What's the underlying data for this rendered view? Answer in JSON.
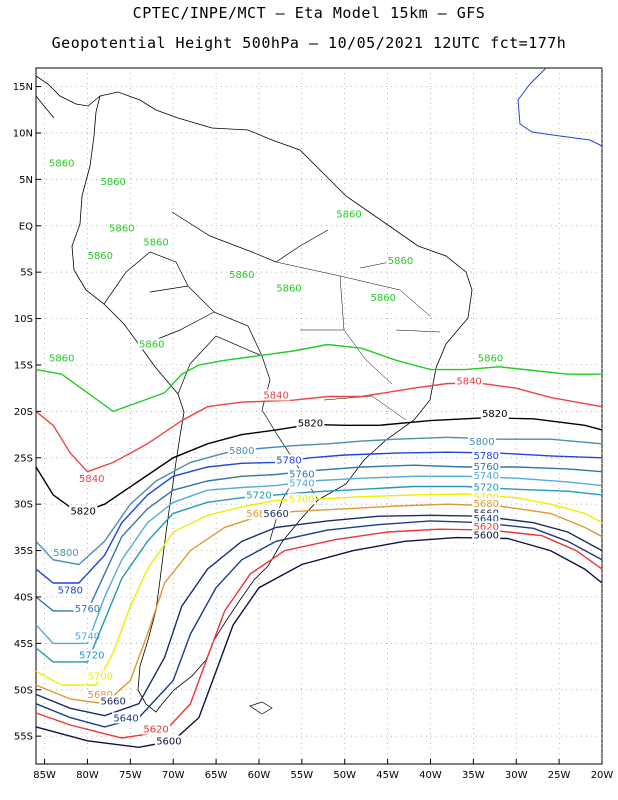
{
  "header": {
    "line1": "CPTEC/INPE/MCT –  Eta Model 15km – GFS",
    "line2": "Geopotential Height 500hPa – 10/05/2021 12UTC fct=177h"
  },
  "axes": {
    "lat_ticks": [
      "15N",
      "10N",
      "5N",
      "EQ",
      "5S",
      "10S",
      "15S",
      "20S",
      "25S",
      "30S",
      "35S",
      "40S",
      "45S",
      "50S",
      "55S"
    ],
    "lon_ticks": [
      "85W",
      "80W",
      "75W",
      "70W",
      "65W",
      "60W",
      "55W",
      "50W",
      "45W",
      "40W",
      "35W",
      "30W",
      "25W",
      "20W"
    ],
    "lat_values": [
      15,
      10,
      5,
      0,
      -5,
      -10,
      -15,
      -20,
      -25,
      -30,
      -35,
      -40,
      -45,
      -50,
      -55
    ],
    "lon_values": [
      -85,
      -80,
      -75,
      -70,
      -65,
      -60,
      -55,
      -50,
      -45,
      -40,
      -35,
      -30,
      -25,
      -20
    ],
    "lon_range": [
      -86,
      -20
    ],
    "lat_range": [
      -58,
      17
    ]
  },
  "contours": [
    {
      "level": 5860,
      "label": "5860",
      "color": "#22cc22",
      "path": [
        [
          -86,
          -15.5
        ],
        [
          -83,
          -16
        ],
        [
          -80,
          -18
        ],
        [
          -77,
          -20
        ],
        [
          -74,
          -19
        ],
        [
          -71,
          -18
        ],
        [
          -69,
          -16
        ],
        [
          -67,
          -15
        ],
        [
          -64,
          -14.5
        ],
        [
          -60,
          -14
        ],
        [
          -56,
          -13.5
        ],
        [
          -52,
          -12.8
        ],
        [
          -48,
          -13.2
        ],
        [
          -44,
          -14.5
        ],
        [
          -40,
          -15.5
        ],
        [
          -36,
          -15.5
        ],
        [
          -32,
          -15.2
        ],
        [
          -28,
          -15.6
        ],
        [
          -24,
          -16
        ],
        [
          -20,
          -16
        ]
      ],
      "labels": [
        {
          "lon": -83,
          "lat": -14.5
        },
        {
          "lon": -33,
          "lat": -14.5
        },
        {
          "lon": -83,
          "lat": 6.5
        },
        {
          "lon": -77,
          "lat": 4.5
        },
        {
          "lon": -76,
          "lat": -0.5
        },
        {
          "lon": -72,
          "lat": -2
        },
        {
          "lon": -78.5,
          "lat": -3.5
        },
        {
          "lon": -62,
          "lat": -5.5
        },
        {
          "lon": -56.5,
          "lat": -7
        },
        {
          "lon": -49.5,
          "lat": 1
        },
        {
          "lon": -43.5,
          "lat": -4
        },
        {
          "lon": -45.5,
          "lat": -8
        },
        {
          "lon": -72.5,
          "lat": -13
        }
      ]
    },
    {
      "level": 5840,
      "label": "5840",
      "color": "#ee4444",
      "path": [
        [
          -86,
          -20
        ],
        [
          -84,
          -21.5
        ],
        [
          -82,
          -24.5
        ],
        [
          -80,
          -26.5
        ],
        [
          -77,
          -25.5
        ],
        [
          -73,
          -23.5
        ],
        [
          -69,
          -21
        ],
        [
          -66,
          -19.5
        ],
        [
          -62,
          -19
        ],
        [
          -56,
          -18.8
        ],
        [
          -52,
          -18.4
        ],
        [
          -48,
          -18.4
        ],
        [
          -42,
          -17.5
        ],
        [
          -38,
          -17
        ],
        [
          -34,
          -17
        ],
        [
          -30,
          -17.5
        ],
        [
          -26,
          -18.5
        ],
        [
          -20,
          -19.5
        ]
      ],
      "labels": [
        {
          "lon": -79.5,
          "lat": -27.5
        },
        {
          "lon": -58,
          "lat": -18.5
        },
        {
          "lon": -35.5,
          "lat": -17
        }
      ]
    },
    {
      "level": 5820,
      "label": "5820",
      "color": "#000000",
      "path": [
        [
          -86,
          -26
        ],
        [
          -84,
          -29
        ],
        [
          -81,
          -31
        ],
        [
          -78,
          -30
        ],
        [
          -74,
          -27.5
        ],
        [
          -70,
          -25
        ],
        [
          -66,
          -23.5
        ],
        [
          -62,
          -22.5
        ],
        [
          -58,
          -22
        ],
        [
          -54,
          -21.4
        ],
        [
          -50,
          -21.5
        ],
        [
          -46,
          -21.5
        ],
        [
          -40,
          -21
        ],
        [
          -34,
          -20.7
        ],
        [
          -28,
          -20.8
        ],
        [
          -22,
          -21.5
        ],
        [
          -20,
          -22
        ]
      ],
      "labels": [
        {
          "lon": -80.5,
          "lat": -31
        },
        {
          "lon": -54,
          "lat": -21.5
        },
        {
          "lon": -32.5,
          "lat": -20.5
        }
      ]
    },
    {
      "level": 5800,
      "label": "5800",
      "color": "#4a8fb0",
      "path": [
        [
          -86,
          -34
        ],
        [
          -84,
          -36
        ],
        [
          -81,
          -36.5
        ],
        [
          -78,
          -34
        ],
        [
          -75,
          -30
        ],
        [
          -72,
          -27.5
        ],
        [
          -68,
          -25.5
        ],
        [
          -64,
          -24.5
        ],
        [
          -60,
          -24
        ],
        [
          -56,
          -23.7
        ],
        [
          -52,
          -23.5
        ],
        [
          -48,
          -23.2
        ],
        [
          -44,
          -23
        ],
        [
          -38,
          -22.8
        ],
        [
          -32,
          -23
        ],
        [
          -26,
          -23
        ],
        [
          -20,
          -23.5
        ]
      ],
      "labels": [
        {
          "lon": -82.5,
          "lat": -35.5
        },
        {
          "lon": -62,
          "lat": -24.5
        },
        {
          "lon": -34,
          "lat": -23.5
        }
      ]
    },
    {
      "level": 5780,
      "label": "5780",
      "color": "#2244dd",
      "path": [
        [
          -86,
          -37
        ],
        [
          -84,
          -38.5
        ],
        [
          -81,
          -38.5
        ],
        [
          -78,
          -35.5
        ],
        [
          -76,
          -32
        ],
        [
          -73,
          -29
        ],
        [
          -70,
          -27
        ],
        [
          -66,
          -26
        ],
        [
          -62,
          -25.6
        ],
        [
          -58,
          -25.5
        ],
        [
          -54,
          -25
        ],
        [
          -50,
          -24.7
        ],
        [
          -44,
          -24.5
        ],
        [
          -38,
          -24.4
        ],
        [
          -32,
          -24.5
        ],
        [
          -26,
          -24.8
        ],
        [
          -20,
          -25
        ]
      ],
      "labels": [
        {
          "lon": -82,
          "lat": -39.5
        },
        {
          "lon": -56.5,
          "lat": -25.5
        },
        {
          "lon": -33.5,
          "lat": -25
        }
      ]
    },
    {
      "level": 5760,
      "label": "5760",
      "color": "#3377aa",
      "path": [
        [
          -86,
          -40
        ],
        [
          -84,
          -41.5
        ],
        [
          -80,
          -41.5
        ],
        [
          -78,
          -37.5
        ],
        [
          -76,
          -33.5
        ],
        [
          -73,
          -30.5
        ],
        [
          -70,
          -28.5
        ],
        [
          -66,
          -27.5
        ],
        [
          -62,
          -27
        ],
        [
          -58,
          -26.8
        ],
        [
          -54,
          -26.4
        ],
        [
          -48,
          -26
        ],
        [
          -42,
          -25.8
        ],
        [
          -36,
          -26
        ],
        [
          -30,
          -26
        ],
        [
          -24,
          -26.2
        ],
        [
          -20,
          -26.5
        ]
      ],
      "labels": [
        {
          "lon": -80,
          "lat": -41.5
        },
        {
          "lon": -55,
          "lat": -27
        },
        {
          "lon": -33.5,
          "lat": -26.2
        }
      ]
    },
    {
      "level": 5740,
      "label": "5740",
      "color": "#55aadd",
      "path": [
        [
          -86,
          -43
        ],
        [
          -84,
          -45
        ],
        [
          -80,
          -45
        ],
        [
          -78,
          -40
        ],
        [
          -76,
          -36
        ],
        [
          -73,
          -32
        ],
        [
          -70,
          -29.8
        ],
        [
          -66,
          -28.5
        ],
        [
          -62,
          -28.2
        ],
        [
          -58,
          -28
        ],
        [
          -54,
          -27.5
        ],
        [
          -48,
          -27.2
        ],
        [
          -42,
          -27
        ],
        [
          -36,
          -27
        ],
        [
          -30,
          -27.2
        ],
        [
          -24,
          -27.6
        ],
        [
          -20,
          -28
        ]
      ],
      "labels": [
        {
          "lon": -80,
          "lat": -44.5
        },
        {
          "lon": -55,
          "lat": -28
        },
        {
          "lon": -33.5,
          "lat": -27.2
        }
      ]
    },
    {
      "level": 5720,
      "label": "5720",
      "color": "#2299bb",
      "path": [
        [
          -86,
          -45.5
        ],
        [
          -84,
          -47
        ],
        [
          -80,
          -47
        ],
        [
          -78,
          -42.5
        ],
        [
          -76,
          -38
        ],
        [
          -73,
          -34
        ],
        [
          -70,
          -31
        ],
        [
          -66,
          -29.8
        ],
        [
          -62,
          -29.3
        ],
        [
          -58,
          -29
        ],
        [
          -54,
          -28.7
        ],
        [
          -48,
          -28.4
        ],
        [
          -42,
          -28.1
        ],
        [
          -36,
          -28.1
        ],
        [
          -30,
          -28.4
        ],
        [
          -24,
          -28.6
        ],
        [
          -20,
          -29
        ]
      ],
      "labels": [
        {
          "lon": -79.5,
          "lat": -46.5
        },
        {
          "lon": -60,
          "lat": -29.3
        },
        {
          "lon": -33.5,
          "lat": -28.4
        }
      ]
    },
    {
      "level": 5700,
      "label": "5700",
      "color": "#eeee00",
      "path": [
        [
          -86,
          -48
        ],
        [
          -83,
          -49.5
        ],
        [
          -79,
          -49.5
        ],
        [
          -77,
          -46
        ],
        [
          -75,
          -41
        ],
        [
          -73,
          -37
        ],
        [
          -70,
          -33
        ],
        [
          -66,
          -31.2
        ],
        [
          -62,
          -30.3
        ],
        [
          -58,
          -29.6
        ],
        [
          -54,
          -29.5
        ],
        [
          -48,
          -29.2
        ],
        [
          -42,
          -29
        ],
        [
          -36,
          -28.9
        ],
        [
          -30,
          -29.3
        ],
        [
          -26,
          -30
        ],
        [
          -22,
          -31
        ],
        [
          -20,
          -32
        ]
      ],
      "labels": [
        {
          "lon": -78.5,
          "lat": -48.8
        },
        {
          "lon": -55,
          "lat": -29.7
        },
        {
          "lon": -33.5,
          "lat": -29.5
        }
      ]
    },
    {
      "level": 5680,
      "label": "5680",
      "color": "#dd9933",
      "path": [
        [
          -86,
          -49.5
        ],
        [
          -82,
          -51
        ],
        [
          -78,
          -51.5
        ],
        [
          -75,
          -49
        ],
        [
          -73,
          -44
        ],
        [
          -71,
          -38.5
        ],
        [
          -68,
          -35
        ],
        [
          -64,
          -32.5
        ],
        [
          -60,
          -31.3
        ],
        [
          -56,
          -30.8
        ],
        [
          -50,
          -30.5
        ],
        [
          -44,
          -30.2
        ],
        [
          -38,
          -30
        ],
        [
          -32,
          -30.2
        ],
        [
          -26,
          -31
        ],
        [
          -22,
          -32.5
        ],
        [
          -20,
          -33.5
        ]
      ],
      "labels": [
        {
          "lon": -78.5,
          "lat": -50.8
        },
        {
          "lon": -60,
          "lat": -31.3
        },
        {
          "lon": -33.5,
          "lat": -30.2
        }
      ]
    },
    {
      "level": 5660,
      "label": "5660",
      "color": "#1a2d66",
      "path": [
        [
          -86,
          -50.5
        ],
        [
          -82,
          -52
        ],
        [
          -78,
          -52.8
        ],
        [
          -74,
          -51.5
        ],
        [
          -71,
          -46.5
        ],
        [
          -69,
          -41
        ],
        [
          -66,
          -37
        ],
        [
          -62,
          -34
        ],
        [
          -58,
          -32.5
        ],
        [
          -52,
          -31.8
        ],
        [
          -46,
          -31.3
        ],
        [
          -40,
          -31.2
        ],
        [
          -34,
          -31.3
        ],
        [
          -28,
          -32
        ],
        [
          -24,
          -33
        ],
        [
          -20,
          -35
        ]
      ],
      "labels": [
        {
          "lon": -77,
          "lat": -51.5
        },
        {
          "lon": -58,
          "lat": -31.3
        },
        {
          "lon": -33.5,
          "lat": -31.2
        }
      ]
    },
    {
      "level": 5640,
      "label": "5640",
      "color": "#1a3d88",
      "path": [
        [
          -86,
          -51.5
        ],
        [
          -82,
          -53
        ],
        [
          -78,
          -54
        ],
        [
          -74,
          -53
        ],
        [
          -70,
          -49
        ],
        [
          -68,
          -44
        ],
        [
          -65,
          -39
        ],
        [
          -62,
          -36
        ],
        [
          -58,
          -34
        ],
        [
          -52,
          -32.8
        ],
        [
          -46,
          -32.2
        ],
        [
          -40,
          -31.8
        ],
        [
          -34,
          -32
        ],
        [
          -28,
          -32.6
        ],
        [
          -24,
          -34
        ],
        [
          -20,
          -36
        ]
      ],
      "labels": [
        {
          "lon": -75.5,
          "lat": -53.3
        },
        {
          "lon": -33.5,
          "lat": -31.8
        }
      ]
    },
    {
      "level": 5620,
      "label": "5620",
      "color": "#ee3333",
      "path": [
        [
          -86,
          -52.5
        ],
        [
          -82,
          -53.8
        ],
        [
          -76,
          -55.2
        ],
        [
          -71,
          -54.5
        ],
        [
          -68,
          -51.5
        ],
        [
          -66,
          -46.5
        ],
        [
          -64,
          -41.5
        ],
        [
          -61,
          -37.5
        ],
        [
          -57,
          -35
        ],
        [
          -51,
          -33.8
        ],
        [
          -45,
          -33
        ],
        [
          -39,
          -32.7
        ],
        [
          -33,
          -32.8
        ],
        [
          -27,
          -33.4
        ],
        [
          -23,
          -35
        ],
        [
          -20,
          -37
        ]
      ],
      "labels": [
        {
          "lon": -72,
          "lat": -54.5
        },
        {
          "lon": -33.5,
          "lat": -32.7
        }
      ]
    },
    {
      "level": 5600,
      "label": "5600",
      "color": "#111144",
      "path": [
        [
          -86,
          -54
        ],
        [
          -80,
          -55.5
        ],
        [
          -74,
          -56.2
        ],
        [
          -70,
          -55.5
        ],
        [
          -67,
          -53
        ],
        [
          -65,
          -48
        ],
        [
          -63,
          -43
        ],
        [
          -60,
          -39
        ],
        [
          -55,
          -36.5
        ],
        [
          -49,
          -35
        ],
        [
          -43,
          -34
        ],
        [
          -37,
          -33.6
        ],
        [
          -31,
          -33.7
        ],
        [
          -26,
          -35
        ],
        [
          -22,
          -37
        ],
        [
          -20,
          -38.5
        ]
      ],
      "labels": [
        {
          "lon": -70.5,
          "lat": -55.8
        },
        {
          "lon": -33.5,
          "lat": -33.6
        }
      ]
    }
  ]
}
